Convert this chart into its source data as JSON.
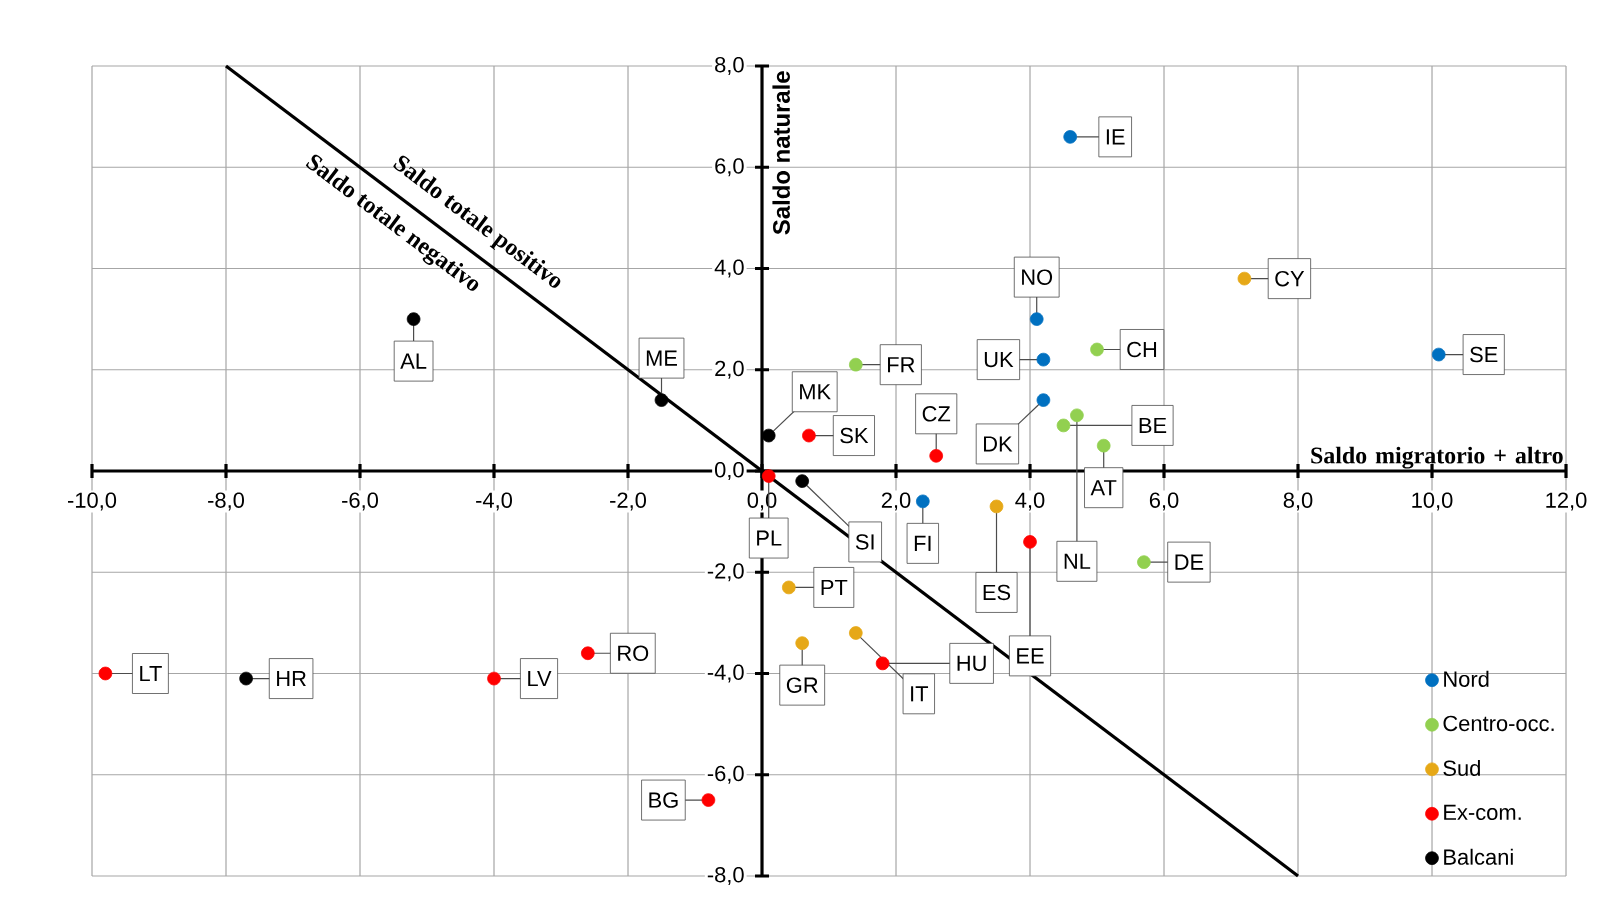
{
  "chart_data": {
    "type": "scatter",
    "xlabel": "Saldo migratorio + altro",
    "ylabel": "Saldo naturale",
    "xlim": [
      -10,
      12
    ],
    "ylim": [
      -8,
      8
    ],
    "xticks": [
      {
        "value": -10,
        "label": "-10,0"
      },
      {
        "value": -8,
        "label": "-8,0"
      },
      {
        "value": -6,
        "label": "-6,0"
      },
      {
        "value": -4,
        "label": "-4,0"
      },
      {
        "value": -2,
        "label": "-2,0"
      },
      {
        "value": 0,
        "label": "0,0"
      },
      {
        "value": 2,
        "label": "2,0"
      },
      {
        "value": 4,
        "label": "4,0"
      },
      {
        "value": 6,
        "label": "6,0"
      },
      {
        "value": 8,
        "label": "8,0"
      },
      {
        "value": 10,
        "label": "10,0"
      },
      {
        "value": 12,
        "label": "12,0"
      }
    ],
    "yticks": [
      {
        "value": -8,
        "label": "-8,0"
      },
      {
        "value": -6,
        "label": "-6,0"
      },
      {
        "value": -4,
        "label": "-4,0"
      },
      {
        "value": -2,
        "label": "-2,0"
      },
      {
        "value": 0,
        "label": "0,0"
      },
      {
        "value": 2,
        "label": "2,0"
      },
      {
        "value": 4,
        "label": "4,0"
      },
      {
        "value": 6,
        "label": "6,0"
      },
      {
        "value": 8,
        "label": "8,0"
      }
    ],
    "grid": true,
    "legend": "bottom right",
    "annotations": [
      "Saldo totale positivo",
      "Saldo totale negativo"
    ],
    "series": [
      {
        "name": "Nord",
        "marker": "circle",
        "color": "#0070c0",
        "x": [
          4.6,
          4.1,
          4.2,
          10.1,
          4.2,
          2.4
        ],
        "values": [
          6.6,
          3.0,
          2.2,
          2.3,
          1.4,
          -0.6
        ],
        "value_labels": [
          "IE",
          "NO",
          "UK",
          "SE",
          "DK",
          "FI"
        ]
      },
      {
        "name": "Centro-occ.",
        "marker": "circle",
        "color": "#92d050",
        "x": [
          1.4,
          5.0,
          4.5,
          4.7,
          5.1,
          5.7
        ],
        "values": [
          2.1,
          2.4,
          0.9,
          1.1,
          0.5,
          -1.8
        ],
        "value_labels": [
          "FR",
          "CH",
          "BE",
          "NL",
          "AT",
          "DE"
        ]
      },
      {
        "name": "Sud",
        "marker": "circle",
        "color": "#e6a817",
        "x": [
          7.2,
          3.5,
          0.4,
          0.6,
          1.4
        ],
        "values": [
          3.8,
          -0.7,
          -2.3,
          -3.4,
          -3.2
        ],
        "value_labels": [
          "CY",
          "ES",
          "PT",
          "GR",
          "IT"
        ]
      },
      {
        "name": "Ex-com.",
        "marker": "circle",
        "color": "#ff0000",
        "x": [
          2.6,
          0.7,
          0.1,
          4.0,
          1.8,
          -9.8,
          -4.0,
          -2.6,
          -0.8
        ],
        "values": [
          0.3,
          0.7,
          -0.1,
          -1.4,
          -3.8,
          -4.0,
          -4.1,
          -3.6,
          -6.5
        ],
        "value_labels": [
          "CZ",
          "SK",
          "PL",
          "EE",
          "HU",
          "LT",
          "LV",
          "RO",
          "BG"
        ]
      },
      {
        "name": "Balcani",
        "marker": "circle",
        "color": "#000000",
        "x": [
          -5.2,
          -1.5,
          0.1,
          0.6,
          -7.7
        ],
        "values": [
          3.0,
          1.4,
          0.7,
          -0.2,
          -4.1
        ],
        "value_labels": [
          "AL",
          "ME",
          "MK",
          "SI",
          "HR"
        ]
      },
      {
        "type": "line",
        "marker": "none",
        "color": "#000000",
        "x": [
          -8,
          8
        ],
        "values": [
          8,
          -8
        ]
      }
    ]
  }
}
